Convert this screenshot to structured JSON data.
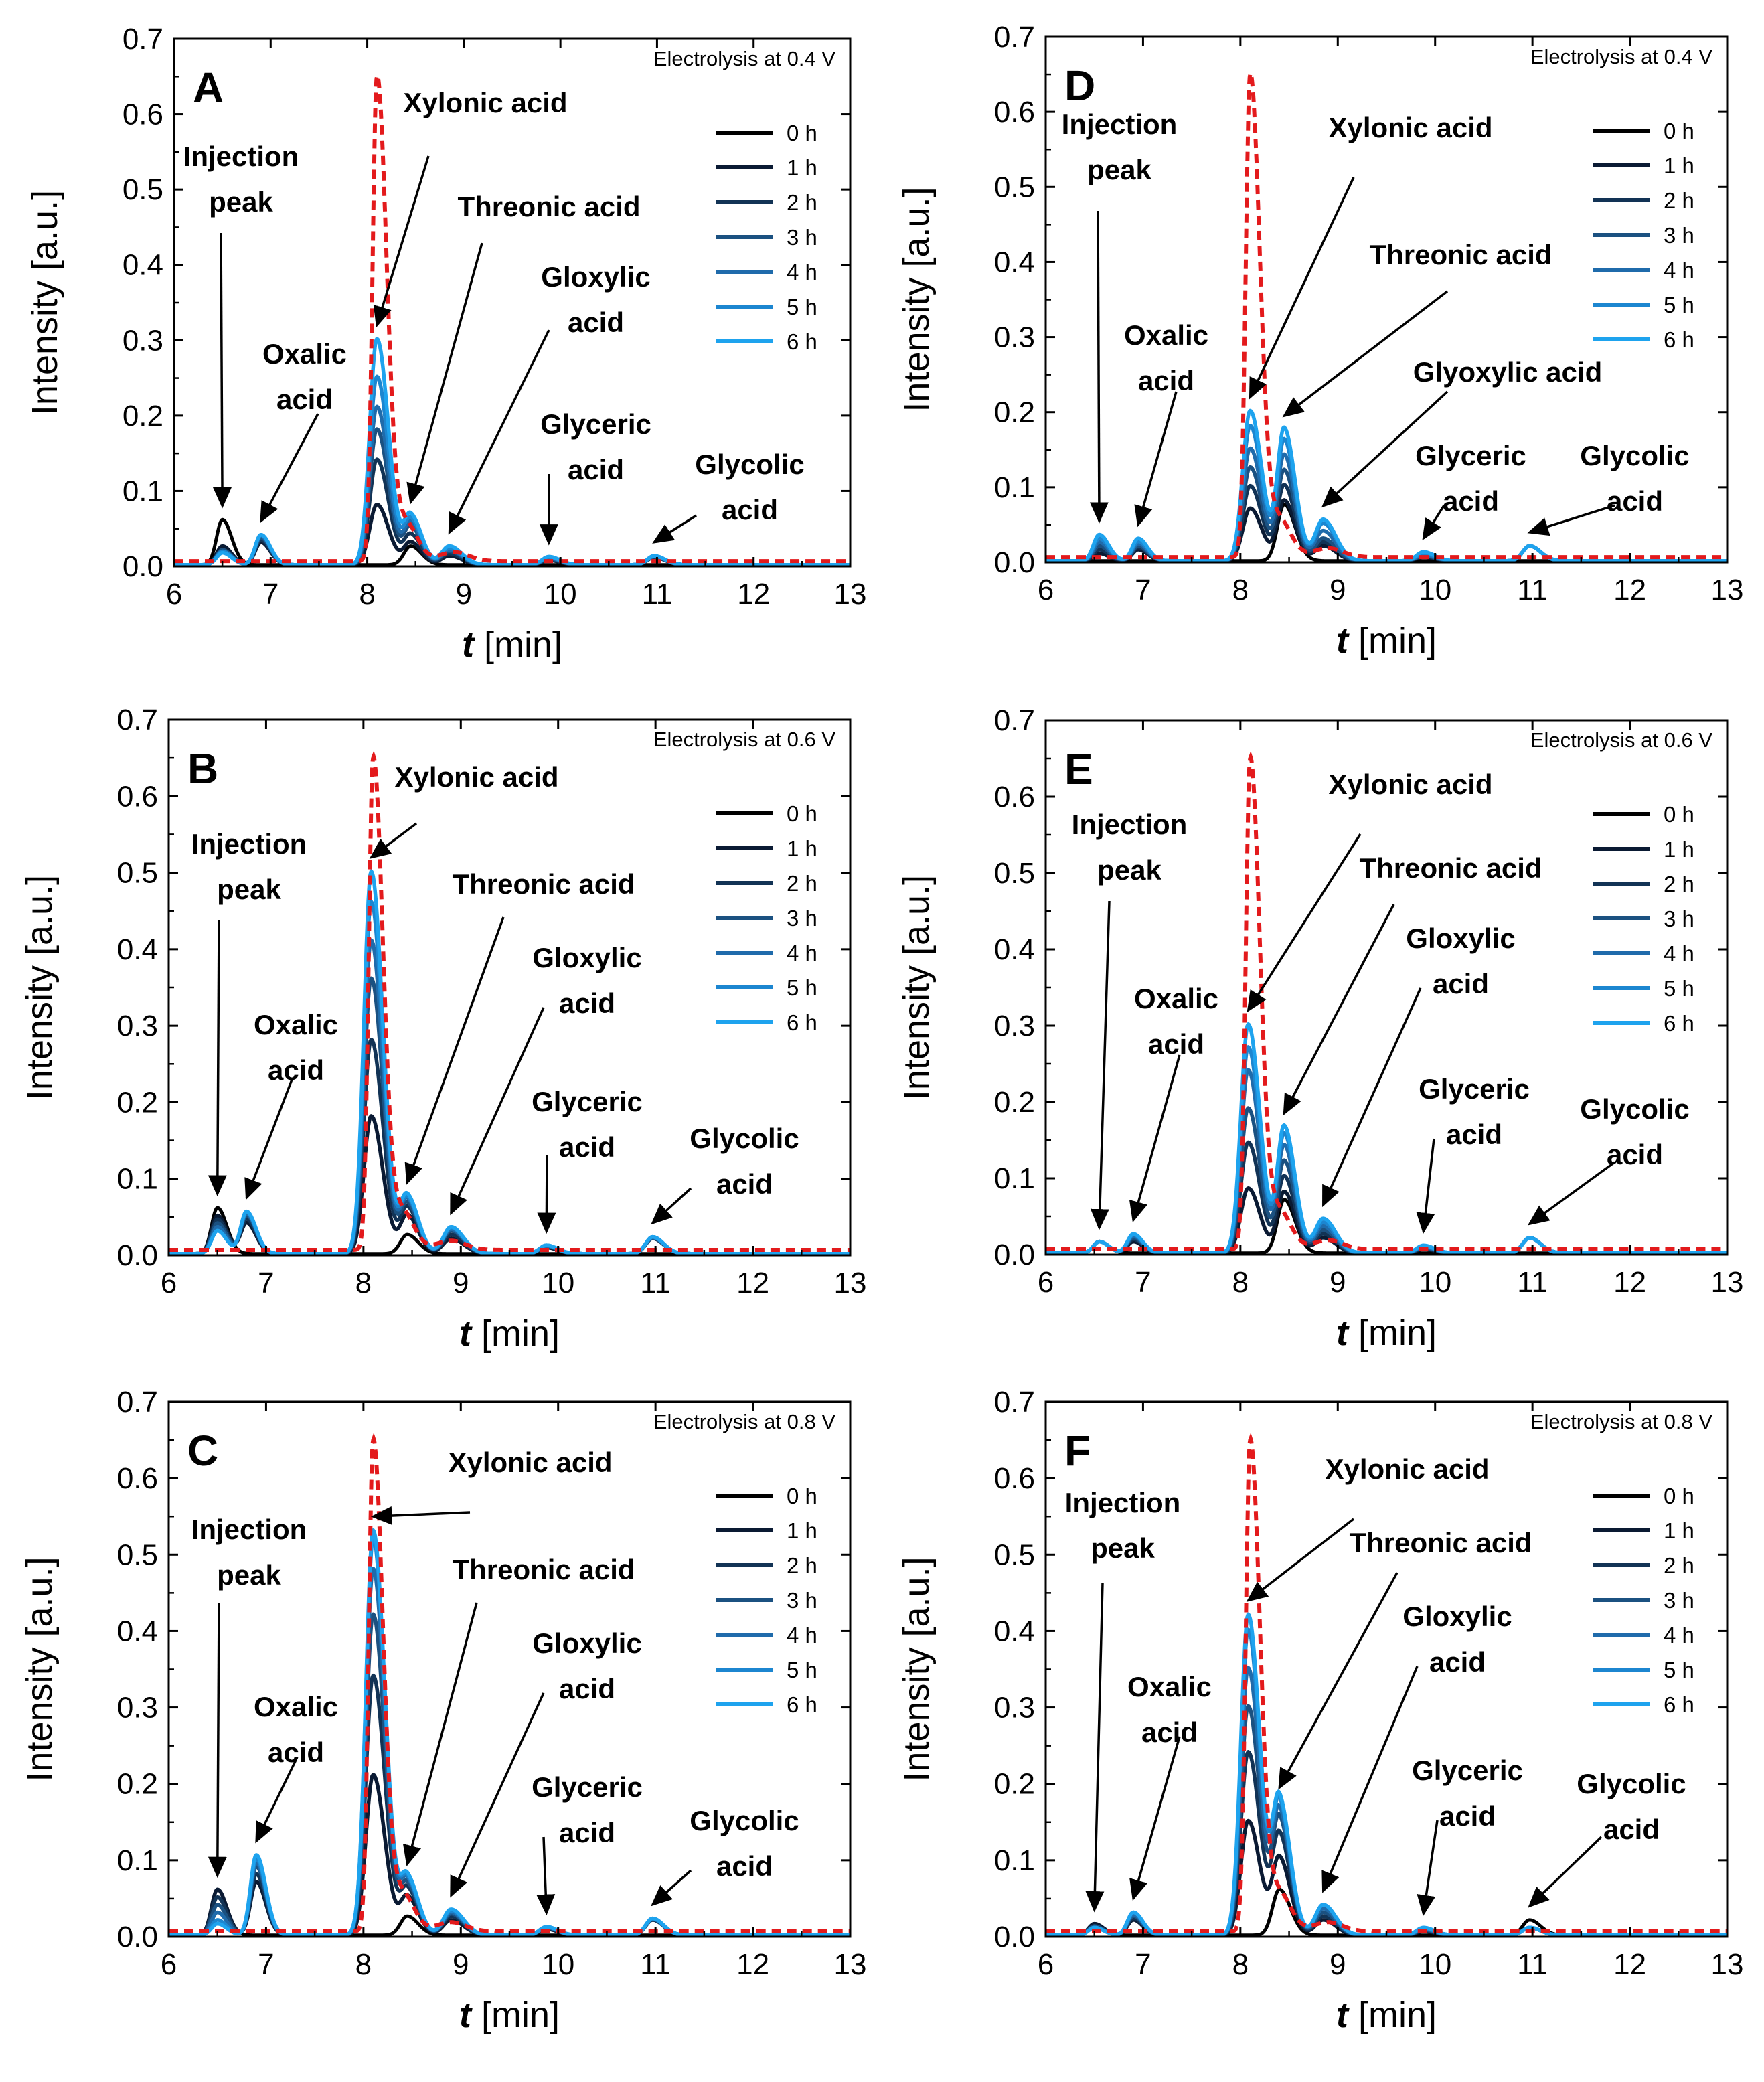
{
  "figure": {
    "y_axis_title": "Intensity [a.u.]",
    "x_axis_var": "t",
    "x_axis_unit": " [min]",
    "legend_labels": [
      "0 h",
      "1 h",
      "2 h",
      "3 h",
      "4 h",
      "5 h",
      "6 h"
    ],
    "series_colors": [
      "#000000",
      "#0a1a33",
      "#123355",
      "#1b5181",
      "#1f6bab",
      "#1c86d0",
      "#1ea3ee"
    ],
    "reference_color": "#e31a1c"
  },
  "chart_data": [
    {
      "type": "line",
      "panel": "A",
      "condition": "Electrolysis at 0.4 V",
      "xlim": [
        6,
        13
      ],
      "ylim": [
        0,
        0.7
      ],
      "xticks": [
        6,
        7,
        8,
        9,
        10,
        11,
        12,
        13
      ],
      "yticks": [
        0.0,
        0.1,
        0.2,
        0.3,
        0.4,
        0.5,
        0.6,
        0.7
      ],
      "xlabel": "t [min]",
      "ylabel": "Intensity [a.u.]",
      "series_names": [
        "0 h",
        "1 h",
        "2 h",
        "3 h",
        "4 h",
        "5 h",
        "6 h"
      ],
      "peak_retention_times": {
        "injection": 6.5,
        "oxalic": 6.9,
        "xylonic": 8.1,
        "threonic": 8.45,
        "glyoxylic": 8.85,
        "glyceric": 9.88,
        "glycolic": 10.97
      },
      "peak_heights": {
        "injection": [
          0.06,
          0.025,
          0.02,
          0.02,
          0.018,
          0.018,
          0.016
        ],
        "oxalic": [
          0,
          0.03,
          0.033,
          0.036,
          0.038,
          0.04,
          0.04
        ],
        "xylonic": [
          0,
          0.08,
          0.14,
          0.18,
          0.21,
          0.25,
          0.3
        ],
        "threonic": [
          0.025,
          0.03,
          0.04,
          0.05,
          0.055,
          0.06,
          0.065
        ],
        "glyoxylic": [
          0,
          0.012,
          0.015,
          0.018,
          0.02,
          0.022,
          0.025
        ],
        "glyceric": [
          0,
          0.006,
          0.007,
          0.008,
          0.009,
          0.01,
          0.011
        ],
        "glycolic": [
          0,
          0.01,
          0.01,
          0.011,
          0.011,
          0.012,
          0.012
        ]
      },
      "reference": {
        "style": "dashed",
        "color": "red",
        "peak_x": 8.1,
        "peak_y": 0.65,
        "baseline": 0.007
      },
      "annotations": [
        "Injection peak",
        "Oxalic acid",
        "Xylonic acid",
        "Threonic acid",
        "Gloxylic acid",
        "Glyceric acid",
        "Glycolic acid"
      ]
    },
    {
      "type": "line",
      "panel": "B",
      "condition": "Electrolysis at 0.6 V",
      "xlim": [
        6,
        13
      ],
      "ylim": [
        0,
        0.7
      ],
      "xticks": [
        6,
        7,
        8,
        9,
        10,
        11,
        12,
        13
      ],
      "yticks": [
        0.0,
        0.1,
        0.2,
        0.3,
        0.4,
        0.5,
        0.6,
        0.7
      ],
      "xlabel": "t [min]",
      "ylabel": "Intensity [a.u.]",
      "series_names": [
        "0 h",
        "1 h",
        "2 h",
        "3 h",
        "4 h",
        "5 h",
        "6 h"
      ],
      "peak_retention_times": {
        "injection": 6.5,
        "oxalic": 6.8,
        "xylonic": 8.08,
        "threonic": 8.45,
        "glyoxylic": 8.9,
        "glyceric": 9.88,
        "glycolic": 10.97
      },
      "peak_heights": {
        "injection": [
          0.06,
          0.05,
          0.045,
          0.04,
          0.035,
          0.03,
          0.03
        ],
        "oxalic": [
          0,
          0.04,
          0.045,
          0.05,
          0.052,
          0.054,
          0.055
        ],
        "xylonic": [
          0,
          0.18,
          0.28,
          0.36,
          0.41,
          0.46,
          0.5
        ],
        "threonic": [
          0.025,
          0.05,
          0.06,
          0.065,
          0.07,
          0.072,
          0.075
        ],
        "glyoxylic": [
          0,
          0.02,
          0.025,
          0.03,
          0.032,
          0.034,
          0.035
        ],
        "glyceric": [
          0,
          0.008,
          0.009,
          0.01,
          0.01,
          0.011,
          0.011
        ],
        "glycolic": [
          0,
          0.02,
          0.02,
          0.021,
          0.021,
          0.022,
          0.022
        ]
      },
      "reference": {
        "style": "dashed",
        "color": "red",
        "peak_x": 8.1,
        "peak_y": 0.65,
        "baseline": 0.007
      },
      "annotations": [
        "Injection peak",
        "Oxalic acid",
        "Xylonic acid",
        "Threonic acid",
        "Gloxylic acid",
        "Glyceric acid",
        "Glycolic acid"
      ]
    },
    {
      "type": "line",
      "panel": "C",
      "condition": "Electrolysis at 0.8 V",
      "xlim": [
        6,
        13
      ],
      "ylim": [
        0,
        0.7
      ],
      "xticks": [
        6,
        7,
        8,
        9,
        10,
        11,
        12,
        13
      ],
      "yticks": [
        0.0,
        0.1,
        0.2,
        0.3,
        0.4,
        0.5,
        0.6,
        0.7
      ],
      "xlabel": "t [min]",
      "ylabel": "Intensity [a.u.]",
      "series_names": [
        "0 h",
        "1 h",
        "2 h",
        "3 h",
        "4 h",
        "5 h",
        "6 h"
      ],
      "peak_retention_times": {
        "injection": 6.5,
        "oxalic": 6.9,
        "xylonic": 8.1,
        "threonic": 8.45,
        "glyoxylic": 8.9,
        "glyceric": 9.88,
        "glycolic": 10.97
      },
      "peak_heights": {
        "injection": [
          0.06,
          0.06,
          0.05,
          0.04,
          0.03,
          0.02,
          0.015
        ],
        "oxalic": [
          0,
          0.07,
          0.08,
          0.09,
          0.095,
          0.1,
          0.105
        ],
        "xylonic": [
          0,
          0.21,
          0.34,
          0.42,
          0.48,
          0.52,
          0.53
        ],
        "threonic": [
          0.025,
          0.05,
          0.06,
          0.065,
          0.07,
          0.072,
          0.075
        ],
        "glyoxylic": [
          0,
          0.02,
          0.025,
          0.028,
          0.03,
          0.032,
          0.034
        ],
        "glyceric": [
          0,
          0.008,
          0.009,
          0.01,
          0.01,
          0.011,
          0.011
        ],
        "glycolic": [
          0,
          0.02,
          0.02,
          0.021,
          0.021,
          0.022,
          0.022
        ]
      },
      "reference": {
        "style": "dashed",
        "color": "red",
        "peak_x": 8.1,
        "peak_y": 0.65,
        "baseline": 0.007
      },
      "annotations": [
        "Injection peak",
        "Oxalic acid",
        "Xylonic acid",
        "Threonic acid",
        "Gloxylic acid",
        "Glyceric acid",
        "Glycolic acid"
      ]
    },
    {
      "type": "line",
      "panel": "D",
      "condition": "Electrolysis at 0.4 V",
      "xlim": [
        6,
        13
      ],
      "ylim": [
        0,
        0.7
      ],
      "xticks": [
        6,
        7,
        8,
        9,
        10,
        11,
        12,
        13
      ],
      "yticks": [
        0.0,
        0.1,
        0.2,
        0.3,
        0.4,
        0.5,
        0.6,
        0.7
      ],
      "xlabel": "t [min]",
      "ylabel": "Intensity [a.u.]",
      "series_names": [
        "0 h",
        "1 h",
        "2 h",
        "3 h",
        "4 h",
        "5 h",
        "6 h"
      ],
      "peak_retention_times": {
        "injection": 6.55,
        "oxalic": 6.95,
        "xylonic": 8.1,
        "threonic": 8.45,
        "glyoxylic": 8.85,
        "glyceric": 9.88,
        "glycolic": 10.97
      },
      "peak_heights": {
        "injection": [
          0,
          0.01,
          0.015,
          0.02,
          0.025,
          0.03,
          0.035
        ],
        "oxalic": [
          0,
          0.015,
          0.018,
          0.02,
          0.023,
          0.026,
          0.03
        ],
        "xylonic": [
          0,
          0.07,
          0.1,
          0.125,
          0.15,
          0.18,
          0.2
        ],
        "threonic": [
          0.075,
          0.08,
          0.1,
          0.12,
          0.14,
          0.16,
          0.175
        ],
        "glyoxylic": [
          0,
          0.02,
          0.025,
          0.03,
          0.04,
          0.05,
          0.055
        ],
        "glyceric": [
          0,
          0.005,
          0.006,
          0.007,
          0.008,
          0.01,
          0.012
        ],
        "glycolic": [
          0,
          0.02,
          0.02,
          0.02,
          0.02,
          0.02,
          0.02
        ]
      },
      "reference": {
        "style": "dashed",
        "color": "red",
        "peak_x": 8.1,
        "peak_y": 0.65,
        "baseline": 0.007
      },
      "annotations": [
        "Injection peak",
        "Oxalic acid",
        "Xylonic acid",
        "Threonic acid",
        "Glyoxylic acid",
        "Glyceric acid",
        "Glycolic acid"
      ]
    },
    {
      "type": "line",
      "panel": "E",
      "condition": "Electrolysis at 0.6 V",
      "xlim": [
        6,
        13
      ],
      "ylim": [
        0,
        0.7
      ],
      "xticks": [
        6,
        7,
        8,
        9,
        10,
        11,
        12,
        13
      ],
      "yticks": [
        0.0,
        0.1,
        0.2,
        0.3,
        0.4,
        0.5,
        0.6,
        0.7
      ],
      "xlabel": "t [min]",
      "ylabel": "Intensity [a.u.]",
      "series_names": [
        "0 h",
        "1 h",
        "2 h",
        "3 h",
        "4 h",
        "5 h",
        "6 h"
      ],
      "peak_retention_times": {
        "injection": 6.55,
        "oxalic": 6.9,
        "xylonic": 8.08,
        "threonic": 8.45,
        "glyoxylic": 8.85,
        "glyceric": 9.88,
        "glycolic": 10.97
      },
      "peak_heights": {
        "injection": [
          0.015,
          0.015,
          0.015,
          0.015,
          0.015,
          0.015,
          0.015
        ],
        "oxalic": [
          0,
          0.015,
          0.018,
          0.02,
          0.022,
          0.024,
          0.025
        ],
        "xylonic": [
          0,
          0.085,
          0.145,
          0.19,
          0.24,
          0.27,
          0.3
        ],
        "threonic": [
          0.07,
          0.08,
          0.1,
          0.12,
          0.14,
          0.155,
          0.165
        ],
        "glyoxylic": [
          0,
          0.02,
          0.025,
          0.03,
          0.035,
          0.04,
          0.045
        ],
        "glyceric": [
          0,
          0.005,
          0.006,
          0.007,
          0.008,
          0.009,
          0.01
        ],
        "glycolic": [
          0,
          0.02,
          0.02,
          0.02,
          0.02,
          0.02,
          0.02
        ]
      },
      "reference": {
        "style": "dashed",
        "color": "red",
        "peak_x": 8.1,
        "peak_y": 0.65,
        "baseline": 0.007
      },
      "annotations": [
        "Injection peak",
        "Oxalic acid",
        "Xylonic acid",
        "Threonic acid",
        "Gloxylic acid",
        "Glyceric acid",
        "Glycolic acid"
      ]
    },
    {
      "type": "line",
      "panel": "F",
      "condition": "Electrolysis at 0.8 V",
      "xlim": [
        6,
        13
      ],
      "ylim": [
        0,
        0.7
      ],
      "xticks": [
        6,
        7,
        8,
        9,
        10,
        11,
        12,
        13
      ],
      "yticks": [
        0.0,
        0.1,
        0.2,
        0.3,
        0.4,
        0.5,
        0.6,
        0.7
      ],
      "xlabel": "t [min]",
      "ylabel": "Intensity [a.u.]",
      "series_names": [
        "0 h",
        "1 h",
        "2 h",
        "3 h",
        "4 h",
        "5 h",
        "6 h"
      ],
      "peak_retention_times": {
        "injection": 6.5,
        "oxalic": 6.9,
        "xylonic": 8.08,
        "threonic": 8.4,
        "glyoxylic": 8.85,
        "glyceric": 9.88,
        "glycolic": 10.97
      },
      "peak_heights": {
        "injection": [
          0.015,
          0.015,
          0.012,
          0.012,
          0.01,
          0.01,
          0.01
        ],
        "oxalic": [
          0,
          0.02,
          0.022,
          0.025,
          0.027,
          0.03,
          0.03
        ],
        "xylonic": [
          0,
          0.15,
          0.24,
          0.3,
          0.35,
          0.4,
          0.42
        ],
        "threonic": [
          0.06,
          0.1,
          0.13,
          0.15,
          0.16,
          0.17,
          0.175
        ],
        "glyoxylic": [
          0,
          0.02,
          0.025,
          0.03,
          0.035,
          0.04,
          0.04
        ],
        "glyceric": [
          0,
          0.005,
          0.006,
          0.007,
          0.008,
          0.009,
          0.01
        ],
        "glycolic": [
          0.02,
          0.01,
          0.01,
          0.01,
          0.01,
          0.01,
          0.01
        ]
      },
      "reference": {
        "style": "dashed",
        "color": "red",
        "peak_x": 8.1,
        "peak_y": 0.65,
        "baseline": 0.007
      },
      "annotations": [
        "Injection peak",
        "Oxalic acid",
        "Xylonic acid",
        "Threonic acid",
        "Gloxylic acid",
        "Glyceric acid",
        "Glycolic acid"
      ]
    }
  ]
}
